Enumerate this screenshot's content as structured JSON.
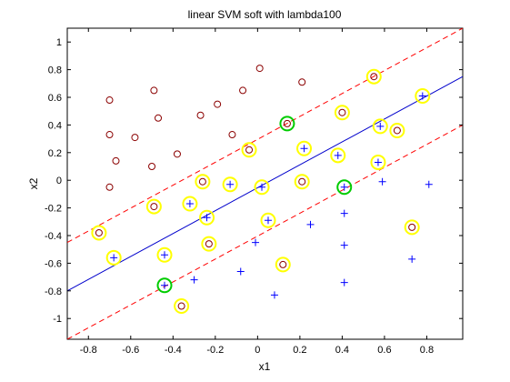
{
  "chart_data": {
    "type": "scatter",
    "title": "linear SVM soft with lambda100",
    "xlabel": "x1",
    "ylabel": "x2",
    "xlim": [
      -0.9,
      0.97
    ],
    "ylim": [
      -1.15,
      1.1
    ],
    "xticks": [
      -0.8,
      -0.6,
      -0.4,
      -0.2,
      0,
      0.2,
      0.4,
      0.6,
      0.8
    ],
    "xtick_labels": [
      "-0.8",
      "-0.6",
      "-0.4",
      "-0.2",
      "0",
      "0.2",
      "0.4",
      "0.6",
      "0.8"
    ],
    "yticks": [
      -1,
      -0.8,
      -0.6,
      -0.4,
      -0.2,
      0,
      0.2,
      0.4,
      0.6,
      0.8,
      1
    ],
    "ytick_labels": [
      "-1",
      "-0.8",
      "-0.6",
      "-0.4",
      "-0.2",
      "0",
      "0.2",
      "0.4",
      "0.6",
      "0.8",
      "1"
    ],
    "grid": false,
    "legend": "none",
    "colors": {
      "circle_class": "#8b0000",
      "plus_class": "#0000ff",
      "decision_line": "#0000cc",
      "margin_lines": "#ff0000",
      "support_vector": "#ffff00",
      "margin_violator": "#00cc00"
    },
    "lines": [
      {
        "role": "decision-boundary",
        "style": "solid",
        "x": [
          -0.9,
          0.97
        ],
        "y": [
          -0.8,
          0.75
        ]
      },
      {
        "role": "margin-upper",
        "style": "dashed",
        "x": [
          -0.9,
          0.97
        ],
        "y": [
          -0.45,
          1.1
        ]
      },
      {
        "role": "margin-lower",
        "style": "dashed",
        "x": [
          -0.9,
          0.97
        ],
        "y": [
          -1.15,
          0.4
        ]
      }
    ],
    "circles": [
      [
        -0.7,
        0.58
      ],
      [
        -0.49,
        0.65
      ],
      [
        -0.7,
        0.33
      ],
      [
        -0.58,
        0.31
      ],
      [
        -0.67,
        0.14
      ],
      [
        -0.47,
        0.45
      ],
      [
        -0.5,
        0.1
      ],
      [
        -0.38,
        0.19
      ],
      [
        -0.7,
        -0.05
      ],
      [
        -0.27,
        0.47
      ],
      [
        -0.19,
        0.55
      ],
      [
        -0.07,
        0.65
      ],
      [
        0.01,
        0.81
      ],
      [
        0.21,
        0.71
      ],
      [
        -0.12,
        0.33
      ],
      [
        -0.04,
        0.22
      ],
      [
        0.14,
        0.41
      ],
      [
        0.4,
        0.49
      ],
      [
        0.55,
        0.75
      ],
      [
        0.66,
        0.36
      ],
      [
        -0.26,
        -0.01
      ],
      [
        -0.49,
        -0.19
      ],
      [
        0.21,
        -0.01
      ],
      [
        -0.75,
        -0.38
      ],
      [
        -0.23,
        -0.46
      ],
      [
        -0.36,
        -0.91
      ],
      [
        0.12,
        -0.61
      ],
      [
        0.73,
        -0.34
      ]
    ],
    "pluses": [
      [
        0.78,
        0.61
      ],
      [
        0.58,
        0.39
      ],
      [
        0.22,
        0.23
      ],
      [
        0.38,
        0.18
      ],
      [
        0.57,
        0.13
      ],
      [
        -0.13,
        -0.03
      ],
      [
        0.02,
        -0.05
      ],
      [
        0.41,
        -0.05
      ],
      [
        0.59,
        -0.01
      ],
      [
        0.81,
        -0.03
      ],
      [
        -0.32,
        -0.17
      ],
      [
        -0.24,
        -0.27
      ],
      [
        0.05,
        -0.29
      ],
      [
        0.25,
        -0.32
      ],
      [
        0.41,
        -0.24
      ],
      [
        -0.01,
        -0.45
      ],
      [
        -0.44,
        -0.54
      ],
      [
        -0.68,
        -0.56
      ],
      [
        0.41,
        -0.47
      ],
      [
        0.73,
        -0.57
      ],
      [
        -0.08,
        -0.66
      ],
      [
        -0.44,
        -0.76
      ],
      [
        -0.3,
        -0.72
      ],
      [
        0.08,
        -0.83
      ],
      [
        0.41,
        -0.74
      ]
    ],
    "support_vectors": [
      [
        0.55,
        0.75
      ],
      [
        0.78,
        0.61
      ],
      [
        0.4,
        0.49
      ],
      [
        0.58,
        0.39
      ],
      [
        0.66,
        0.36
      ],
      [
        -0.04,
        0.22
      ],
      [
        0.22,
        0.23
      ],
      [
        0.38,
        0.18
      ],
      [
        0.57,
        0.13
      ],
      [
        -0.26,
        -0.01
      ],
      [
        -0.13,
        -0.03
      ],
      [
        0.02,
        -0.05
      ],
      [
        0.21,
        -0.01
      ],
      [
        -0.49,
        -0.19
      ],
      [
        -0.32,
        -0.17
      ],
      [
        -0.24,
        -0.27
      ],
      [
        0.05,
        -0.29
      ],
      [
        -0.75,
        -0.38
      ],
      [
        -0.23,
        -0.46
      ],
      [
        -0.44,
        -0.54
      ],
      [
        -0.68,
        -0.56
      ],
      [
        0.12,
        -0.61
      ],
      [
        -0.36,
        -0.91
      ],
      [
        0.73,
        -0.34
      ]
    ],
    "margin_violators": [
      [
        0.14,
        0.41
      ],
      [
        0.41,
        -0.05
      ],
      [
        -0.44,
        -0.76
      ]
    ]
  }
}
